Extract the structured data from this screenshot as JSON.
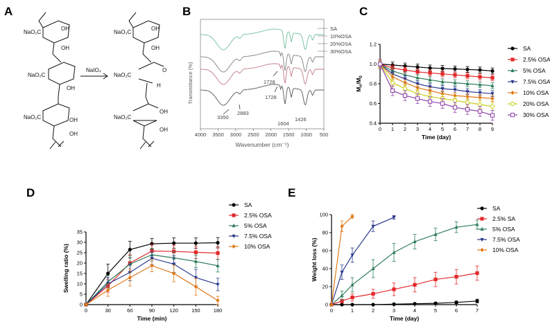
{
  "panels": {
    "a": {
      "label": "A",
      "reagent": "NaIO₄"
    },
    "b": {
      "label": "B",
      "reagent": ""
    },
    "c": {
      "label": "C"
    },
    "d": {
      "label": "D"
    },
    "e": {
      "label": "E"
    }
  },
  "chem": {
    "sa_label_top": "NaO₂C",
    "sa_label_mid": "NaO₂C",
    "sa_label_bot": "NaO₂C",
    "osa_label_top": "NaO₂C",
    "osa_label_mid": "NaO₂C",
    "osa_label_bot": "NaO₂C",
    "oh": "OH",
    "o": "O",
    "h": "H"
  },
  "ir": {
    "ylabel": "Transmittance (%)",
    "xlabel": "Wavenumber (cm⁻¹)",
    "xticks": [
      "4000",
      "3500",
      "3000",
      "2500",
      "2000",
      "1500",
      "1000",
      "500"
    ],
    "legend": [
      "SA",
      "10%OSA",
      "20%OSA",
      "30%OSA"
    ],
    "peaks": {
      "p1728a": "1728",
      "p1728b": "1728",
      "p3350": "3350",
      "p2883": "2883",
      "p1604": "1604",
      "p1426": "1426"
    },
    "colors": {
      "SA": "#6fbf9a",
      "10%OSA": "#808080",
      "20%OSA": "#c07a82",
      "30%OSA": "#555555"
    }
  },
  "chart_data": [
    {
      "id": "C",
      "type": "line",
      "xlabel": "Time (day)",
      "ylabel": "Mn/M0",
      "xlim": [
        0,
        9
      ],
      "ylim": [
        0.4,
        1.2
      ],
      "x": [
        0,
        1,
        2,
        3,
        4,
        5,
        6,
        7,
        8,
        9
      ],
      "yticks": [
        "0.4",
        "0.6",
        "0.8",
        "1.0",
        "1.2"
      ],
      "xticks": [
        "0",
        "1",
        "2",
        "3",
        "4",
        "5",
        "6",
        "7",
        "8",
        "9"
      ],
      "series": [
        {
          "name": "SA",
          "color": "#000000",
          "marker": "circle",
          "values": [
            1.0,
            0.99,
            0.98,
            0.97,
            0.96,
            0.955,
            0.95,
            0.945,
            0.94,
            0.93
          ],
          "err": 0.03
        },
        {
          "name": "2.5% OSA",
          "color": "#e3282a",
          "marker": "square",
          "values": [
            1.0,
            0.96,
            0.94,
            0.92,
            0.91,
            0.9,
            0.89,
            0.88,
            0.87,
            0.86
          ],
          "err": 0.03
        },
        {
          "name": "5% OSA",
          "color": "#2e7d5b",
          "marker": "triangle",
          "values": [
            1.0,
            0.93,
            0.89,
            0.86,
            0.84,
            0.82,
            0.81,
            0.8,
            0.79,
            0.78
          ],
          "err": 0.03
        },
        {
          "name": "7.5% OSA",
          "color": "#2b3a8f",
          "marker": "triangle-down",
          "values": [
            1.0,
            0.9,
            0.85,
            0.8,
            0.77,
            0.75,
            0.74,
            0.72,
            0.71,
            0.7
          ],
          "err": 0.03
        },
        {
          "name": "10% OSA",
          "color": "#e07b1a",
          "marker": "diamond",
          "values": [
            1.0,
            0.87,
            0.81,
            0.76,
            0.73,
            0.7,
            0.68,
            0.67,
            0.66,
            0.65
          ],
          "err": 0.03
        },
        {
          "name": "20% OSA",
          "color": "#c9cf1a",
          "marker": "circle-open",
          "values": [
            1.0,
            0.81,
            0.75,
            0.7,
            0.67,
            0.65,
            0.63,
            0.61,
            0.59,
            0.57
          ],
          "err": 0.04
        },
        {
          "name": "30% OSA",
          "color": "#8e3fa8",
          "marker": "square-open",
          "values": [
            1.0,
            0.73,
            0.68,
            0.65,
            0.62,
            0.6,
            0.56,
            0.54,
            0.52,
            0.48
          ],
          "err": 0.05
        }
      ]
    },
    {
      "id": "D",
      "type": "line",
      "xlabel": "Time (min)",
      "ylabel": "Swelling ratio (%)",
      "xlim": [
        0,
        180
      ],
      "ylim": [
        0,
        35
      ],
      "x": [
        0,
        30,
        60,
        90,
        120,
        150,
        180
      ],
      "yticks": [
        "0",
        "5",
        "10",
        "15",
        "20",
        "25",
        "30",
        "35"
      ],
      "xticks": [
        "0",
        "30",
        "60",
        "90",
        "120",
        "150",
        "180"
      ],
      "series": [
        {
          "name": "SA",
          "color": "#000000",
          "marker": "circle",
          "values": [
            0,
            15,
            26.5,
            29.3,
            29.6,
            29.6,
            29.8
          ],
          "err": [
            0,
            4.5,
            4,
            2.5,
            2.5,
            2.5,
            2.5
          ]
        },
        {
          "name": "2.5% OSA",
          "color": "#e3282a",
          "marker": "square",
          "values": [
            0,
            9,
            20,
            25.8,
            25.6,
            25.2,
            24.8
          ],
          "err": [
            0,
            3,
            4,
            3,
            3,
            3,
            3
          ]
        },
        {
          "name": "5% OSA",
          "color": "#2e7d5b",
          "marker": "triangle",
          "values": [
            0,
            11,
            19.5,
            24,
            22.5,
            20.8,
            18.7
          ],
          "err": [
            0,
            3,
            4,
            3,
            3,
            3,
            3
          ]
        },
        {
          "name": "7.5% OSA",
          "color": "#2b3a8f",
          "marker": "triangle-down",
          "values": [
            0,
            10,
            15.5,
            22.3,
            19.5,
            13,
            9.7
          ],
          "err": [
            0,
            3,
            4,
            3,
            4,
            4,
            3
          ]
        },
        {
          "name": "10% OSA",
          "color": "#e07b1a",
          "marker": "diamond",
          "values": [
            0,
            7,
            13,
            18.8,
            15,
            8.6,
            2
          ],
          "err": [
            0,
            3,
            4,
            3,
            4,
            4,
            2
          ]
        }
      ]
    },
    {
      "id": "E",
      "type": "line",
      "xlabel": "Time (day)",
      "ylabel": "Weight loss (%)",
      "xlim": [
        0,
        7
      ],
      "ylim": [
        0,
        100
      ],
      "yticks": [
        "0",
        "20",
        "40",
        "60",
        "80",
        "100"
      ],
      "xticks": [
        "0",
        "1",
        "2",
        "3",
        "4",
        "5",
        "6",
        "7"
      ],
      "series": [
        {
          "name": "SA",
          "color": "#000000",
          "marker": "circle",
          "x": [
            0,
            0.5,
            1,
            2,
            3,
            4,
            5,
            6,
            7
          ],
          "values": [
            0,
            0,
            0,
            0,
            0.5,
            1,
            1.5,
            2.5,
            4
          ],
          "err": [
            0,
            0,
            0,
            0,
            0.5,
            0.5,
            1,
            1.5,
            2
          ]
        },
        {
          "name": "2.5% SA",
          "color": "#e3282a",
          "marker": "square",
          "x": [
            0,
            0.5,
            1,
            2,
            3,
            4,
            5,
            6,
            7
          ],
          "values": [
            0,
            4,
            8,
            12,
            17,
            22,
            28,
            31,
            35
          ],
          "err": [
            0,
            2,
            4,
            5,
            7,
            8,
            8,
            8,
            8
          ]
        },
        {
          "name": "5% OSA",
          "color": "#2e7d5b",
          "marker": "triangle",
          "x": [
            0,
            0.5,
            1,
            2,
            3,
            4,
            5,
            6,
            7
          ],
          "values": [
            0,
            10,
            22,
            40,
            58,
            70,
            78,
            86,
            89
          ],
          "err": [
            0,
            5,
            8,
            10,
            10,
            8,
            7,
            6,
            5
          ]
        },
        {
          "name": "7.5% OSA",
          "color": "#2b3a8f",
          "marker": "triangle-down",
          "x": [
            0,
            0.5,
            1,
            2,
            3
          ],
          "values": [
            0,
            36,
            55,
            87,
            97
          ],
          "err": [
            0,
            8,
            8,
            6,
            2
          ]
        },
        {
          "name": "10% OSA",
          "color": "#e07b1a",
          "marker": "diamond",
          "x": [
            0,
            0.5,
            1
          ],
          "values": [
            0,
            87,
            98
          ],
          "err": [
            0,
            6,
            2
          ]
        }
      ]
    }
  ]
}
